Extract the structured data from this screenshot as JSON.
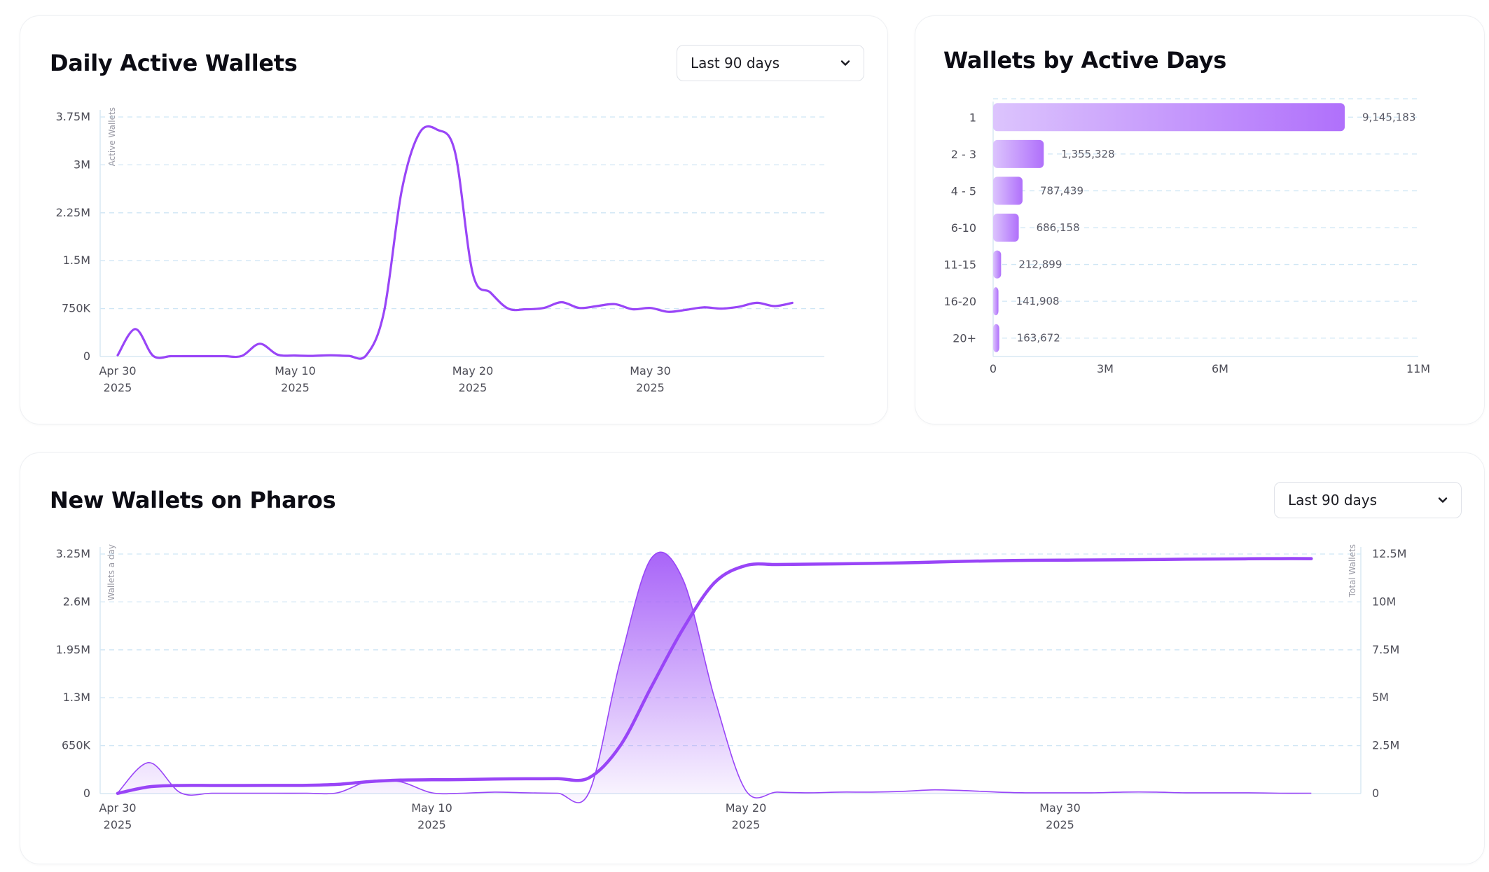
{
  "colors": {
    "accent": "#9945f7",
    "bar_start": "#dcc4fd",
    "bar_end": "#b070fb",
    "grid": "#cfe6f5",
    "axis_text": "#4d4d57",
    "card_border": "#eef0f3"
  },
  "icons": {
    "dropdown": "chevron-down-icon"
  },
  "daily_active": {
    "title": "Daily Active Wallets",
    "range_select": "Last 90 days",
    "ylabel": "Active Wallets"
  },
  "active_days": {
    "title": "Wallets by Active Days"
  },
  "new_wallets": {
    "title": "New Wallets on Pharos",
    "range_select": "Last 90 days",
    "ylabel_left": "Wallets a day",
    "ylabel_right": "Total Wallets"
  },
  "chart_data": [
    {
      "type": "line",
      "title": "Daily Active Wallets",
      "ylabel": "Active Wallets",
      "xlabel": "",
      "x_range": [
        "2025-04-30",
        "2025-06-07"
      ],
      "ylim": [
        0,
        3750000
      ],
      "y_ticks": [
        0,
        750000,
        1500000,
        2250000,
        3000000,
        3750000
      ],
      "y_tick_labels": [
        "0",
        "750K",
        "1.5M",
        "2.25M",
        "3M",
        "3.75M"
      ],
      "x_ticks": [
        {
          "date": "2025-04-30",
          "line1": "Apr 30",
          "line2": "2025"
        },
        {
          "date": "2025-05-10",
          "line1": "May 10",
          "line2": "2025"
        },
        {
          "date": "2025-05-20",
          "line1": "May 20",
          "line2": "2025"
        },
        {
          "date": "2025-05-30",
          "line1": "May 30",
          "line2": "2025"
        }
      ],
      "grid": true,
      "series": [
        {
          "color": "#9945f7",
          "points": [
            [
              "2025-04-30",
              20000
            ],
            [
              "2025-05-01",
              430000
            ],
            [
              "2025-05-02",
              10000
            ],
            [
              "2025-05-03",
              5000
            ],
            [
              "2025-05-04",
              5000
            ],
            [
              "2025-05-05",
              5000
            ],
            [
              "2025-05-06",
              5000
            ],
            [
              "2025-05-07",
              10000
            ],
            [
              "2025-05-08",
              200000
            ],
            [
              "2025-05-09",
              30000
            ],
            [
              "2025-05-10",
              15000
            ],
            [
              "2025-05-11",
              10000
            ],
            [
              "2025-05-12",
              20000
            ],
            [
              "2025-05-13",
              10000
            ],
            [
              "2025-05-14",
              20000
            ],
            [
              "2025-05-15",
              700000
            ],
            [
              "2025-05-16",
              2600000
            ],
            [
              "2025-05-17",
              3500000
            ],
            [
              "2025-05-18",
              3550000
            ],
            [
              "2025-05-19",
              3200000
            ],
            [
              "2025-05-20",
              1300000
            ],
            [
              "2025-05-21",
              1000000
            ],
            [
              "2025-05-22",
              750000
            ],
            [
              "2025-05-23",
              740000
            ],
            [
              "2025-05-24",
              760000
            ],
            [
              "2025-05-25",
              850000
            ],
            [
              "2025-05-26",
              760000
            ],
            [
              "2025-05-27",
              790000
            ],
            [
              "2025-05-28",
              820000
            ],
            [
              "2025-05-29",
              740000
            ],
            [
              "2025-05-30",
              760000
            ],
            [
              "2025-05-31",
              700000
            ],
            [
              "2025-06-01",
              730000
            ],
            [
              "2025-06-02",
              770000
            ],
            [
              "2025-06-03",
              750000
            ],
            [
              "2025-06-04",
              780000
            ],
            [
              "2025-06-05",
              840000
            ],
            [
              "2025-06-06",
              790000
            ],
            [
              "2025-06-07",
              840000
            ]
          ]
        }
      ]
    },
    {
      "type": "bar",
      "orientation": "horizontal",
      "title": "Wallets by Active Days",
      "categories": [
        "1",
        "2 - 3",
        "4 - 5",
        "6-10",
        "11-15",
        "16-20",
        "20+"
      ],
      "values": [
        9145183,
        1355328,
        787439,
        686158,
        212899,
        141908,
        163672
      ],
      "value_labels": [
        "9,145,183",
        "1,355,328",
        "787,439",
        "686,158",
        "212,899",
        "141,908",
        "163,672"
      ],
      "x_ticks": [
        0,
        3000000,
        6000000,
        11000000
      ],
      "x_tick_labels": [
        "0",
        "3M",
        "6M",
        "11M"
      ],
      "xlim": [
        0,
        11000000
      ],
      "grid": true
    },
    {
      "type": "area",
      "title": "New Wallets on Pharos",
      "x_range": [
        "2025-04-30",
        "2025-06-07"
      ],
      "x_ticks": [
        {
          "date": "2025-04-30",
          "line1": "Apr 30",
          "line2": "2025"
        },
        {
          "date": "2025-05-10",
          "line1": "May 10",
          "line2": "2025"
        },
        {
          "date": "2025-05-20",
          "line1": "May 20",
          "line2": "2025"
        },
        {
          "date": "2025-05-30",
          "line1": "May 30",
          "line2": "2025"
        }
      ],
      "y_left": {
        "label": "Wallets a day",
        "lim": [
          0,
          3250000
        ],
        "ticks": [
          0,
          650000,
          1300000,
          1950000,
          2600000,
          3250000
        ],
        "tick_labels": [
          "0",
          "650K",
          "1.3M",
          "1.95M",
          "2.6M",
          "3.25M"
        ]
      },
      "y_right": {
        "label": "Total Wallets",
        "lim": [
          0,
          12500000
        ],
        "ticks": [
          0,
          2500000,
          5000000,
          7500000,
          10000000,
          12500000
        ],
        "tick_labels": [
          "0",
          "2.5M",
          "5M",
          "7.5M",
          "10M",
          "12.5M"
        ]
      },
      "grid": true,
      "series": [
        {
          "name": "Wallets a day",
          "axis": "left",
          "style": "area",
          "color": "#9945f7",
          "points": [
            [
              "2025-04-30",
              10000
            ],
            [
              "2025-05-01",
              420000
            ],
            [
              "2025-05-02",
              10000
            ],
            [
              "2025-05-03",
              5000
            ],
            [
              "2025-05-04",
              5000
            ],
            [
              "2025-05-05",
              5000
            ],
            [
              "2025-05-06",
              5000
            ],
            [
              "2025-05-07",
              10000
            ],
            [
              "2025-05-08",
              170000
            ],
            [
              "2025-05-09",
              160000
            ],
            [
              "2025-05-10",
              10000
            ],
            [
              "2025-05-11",
              5000
            ],
            [
              "2025-05-12",
              20000
            ],
            [
              "2025-05-13",
              10000
            ],
            [
              "2025-05-14",
              5000
            ],
            [
              "2025-05-15",
              10000
            ],
            [
              "2025-05-16",
              1800000
            ],
            [
              "2025-05-17",
              3200000
            ],
            [
              "2025-05-18",
              2900000
            ],
            [
              "2025-05-19",
              1300000
            ],
            [
              "2025-05-20",
              40000
            ],
            [
              "2025-05-21",
              20000
            ],
            [
              "2025-05-22",
              10000
            ],
            [
              "2025-05-23",
              20000
            ],
            [
              "2025-05-24",
              20000
            ],
            [
              "2025-05-25",
              30000
            ],
            [
              "2025-05-26",
              50000
            ],
            [
              "2025-05-27",
              40000
            ],
            [
              "2025-05-28",
              20000
            ],
            [
              "2025-05-29",
              10000
            ],
            [
              "2025-05-30",
              10000
            ],
            [
              "2025-05-31",
              10000
            ],
            [
              "2025-06-01",
              20000
            ],
            [
              "2025-06-02",
              20000
            ],
            [
              "2025-06-03",
              10000
            ],
            [
              "2025-06-04",
              10000
            ],
            [
              "2025-06-05",
              10000
            ],
            [
              "2025-06-06",
              5000
            ],
            [
              "2025-06-07",
              5000
            ]
          ]
        },
        {
          "name": "Total Wallets",
          "axis": "right",
          "style": "line",
          "color": "#9945f7",
          "points": [
            [
              "2025-04-30",
              10000
            ],
            [
              "2025-05-01",
              350000
            ],
            [
              "2025-05-02",
              420000
            ],
            [
              "2025-05-03",
              420000
            ],
            [
              "2025-05-04",
              420000
            ],
            [
              "2025-05-05",
              425000
            ],
            [
              "2025-05-06",
              430000
            ],
            [
              "2025-05-07",
              480000
            ],
            [
              "2025-05-08",
              620000
            ],
            [
              "2025-05-09",
              700000
            ],
            [
              "2025-05-10",
              720000
            ],
            [
              "2025-05-11",
              730000
            ],
            [
              "2025-05-12",
              760000
            ],
            [
              "2025-05-13",
              770000
            ],
            [
              "2025-05-14",
              780000
            ],
            [
              "2025-05-15",
              820000
            ],
            [
              "2025-05-16",
              2500000
            ],
            [
              "2025-05-17",
              5600000
            ],
            [
              "2025-05-18",
              8600000
            ],
            [
              "2025-05-19",
              11000000
            ],
            [
              "2025-05-20",
              11900000
            ],
            [
              "2025-05-21",
              11950000
            ],
            [
              "2025-05-22",
              11970000
            ],
            [
              "2025-05-23",
              11990000
            ],
            [
              "2025-05-24",
              12010000
            ],
            [
              "2025-05-25",
              12040000
            ],
            [
              "2025-05-26",
              12080000
            ],
            [
              "2025-05-27",
              12120000
            ],
            [
              "2025-05-28",
              12150000
            ],
            [
              "2025-05-29",
              12170000
            ],
            [
              "2025-05-30",
              12180000
            ],
            [
              "2025-05-31",
              12190000
            ],
            [
              "2025-06-01",
              12200000
            ],
            [
              "2025-06-02",
              12210000
            ],
            [
              "2025-06-03",
              12230000
            ],
            [
              "2025-06-04",
              12240000
            ],
            [
              "2025-06-05",
              12250000
            ],
            [
              "2025-06-06",
              12260000
            ],
            [
              "2025-06-07",
              12260000
            ]
          ]
        }
      ]
    }
  ]
}
